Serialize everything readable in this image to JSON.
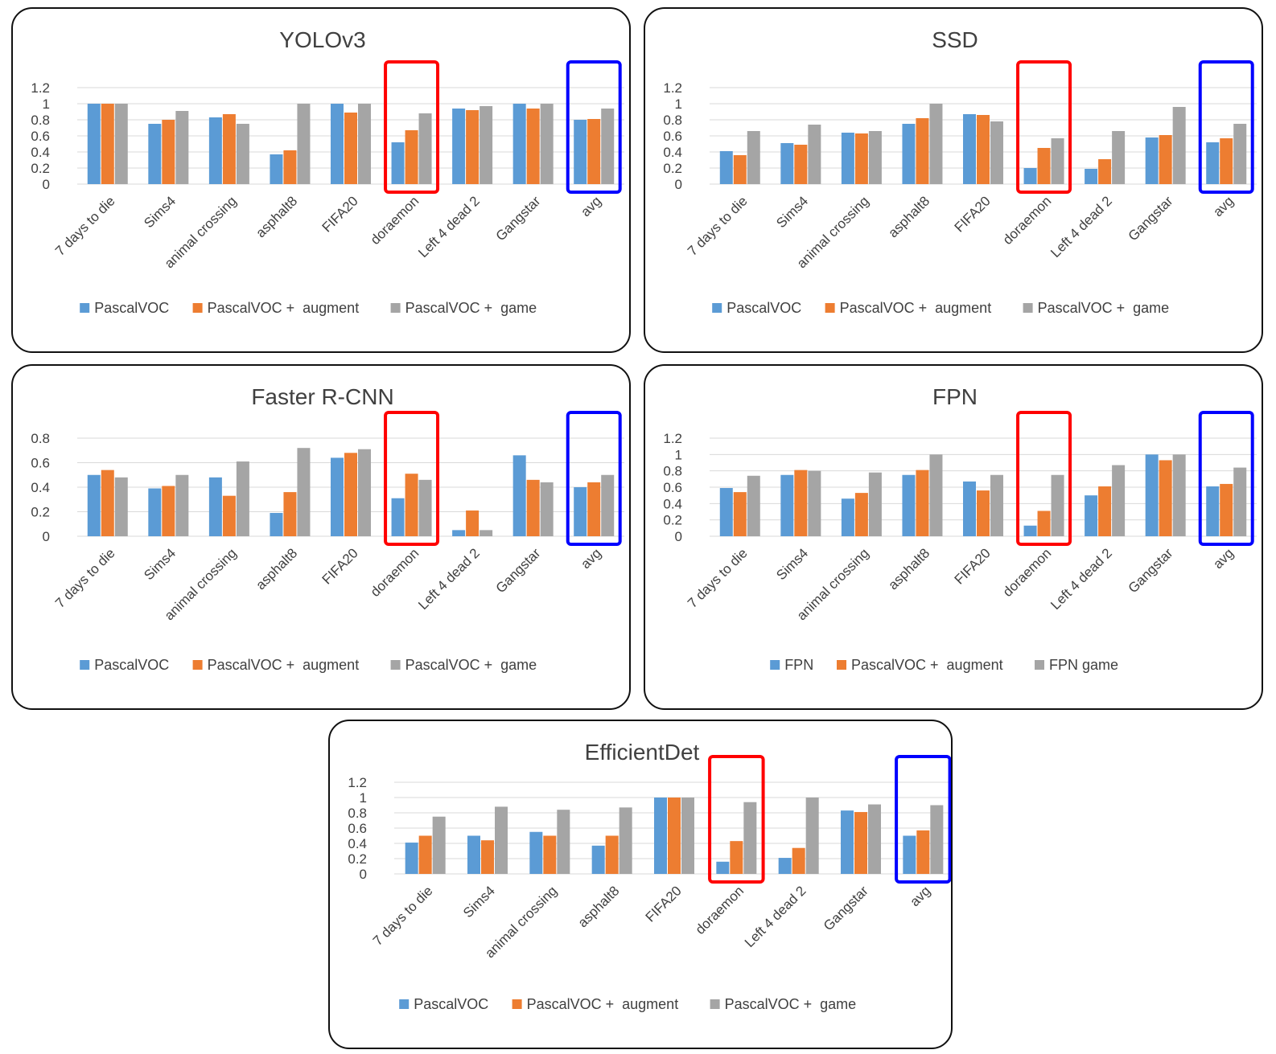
{
  "chart_data": [
    {
      "type": "bar",
      "title": "YOLOv3",
      "categories": [
        "7 days to die",
        "Sims4",
        "animal crossing",
        "asphalt8",
        "FIFA20",
        "doraemon",
        "Left 4 dead 2",
        "Gangstar",
        "avg"
      ],
      "series": [
        {
          "name": "PascalVOC",
          "color": "#5b9bd5",
          "values": [
            1.0,
            0.75,
            0.83,
            0.37,
            1.0,
            0.52,
            0.94,
            1.0,
            0.8
          ]
        },
        {
          "name": "PascalVOC +  augment",
          "color": "#ed7d31",
          "values": [
            1.0,
            0.8,
            0.87,
            0.42,
            0.89,
            0.67,
            0.92,
            0.94,
            0.81
          ]
        },
        {
          "name": "PascalVOC +  game",
          "color": "#a5a5a5",
          "values": [
            1.0,
            0.91,
            0.75,
            1.0,
            1.0,
            0.88,
            0.97,
            1.0,
            0.94
          ]
        }
      ],
      "yticks": [
        "0",
        "0.2",
        "0.4",
        "0.6",
        "0.8",
        "1",
        "1.2"
      ],
      "ylim": [
        0,
        1.2
      ],
      "grid": true,
      "legend_position": "bottom",
      "highlight_red": "doraemon",
      "highlight_blue": "avg"
    },
    {
      "type": "bar",
      "title": "SSD",
      "categories": [
        "7 days to die",
        "Sims4",
        "animal crossing",
        "asphalt8",
        "FIFA20",
        "doraemon",
        "Left 4 dead 2",
        "Gangstar",
        "avg"
      ],
      "series": [
        {
          "name": "PascalVOC",
          "color": "#5b9bd5",
          "values": [
            0.41,
            0.51,
            0.64,
            0.75,
            0.87,
            0.2,
            0.19,
            0.58,
            0.52
          ]
        },
        {
          "name": "PascalVOC +  augment",
          "color": "#ed7d31",
          "values": [
            0.36,
            0.49,
            0.63,
            0.82,
            0.86,
            0.45,
            0.31,
            0.61,
            0.57
          ]
        },
        {
          "name": "PascalVOC +  game",
          "color": "#a5a5a5",
          "values": [
            0.66,
            0.74,
            0.66,
            1.0,
            0.78,
            0.57,
            0.66,
            0.96,
            0.75
          ]
        }
      ],
      "yticks": [
        "0",
        "0.2",
        "0.4",
        "0.6",
        "0.8",
        "1",
        "1.2"
      ],
      "ylim": [
        0,
        1.2
      ],
      "grid": true,
      "legend_position": "bottom",
      "highlight_red": "doraemon",
      "highlight_blue": "avg"
    },
    {
      "type": "bar",
      "title": "Faster R-CNN",
      "categories": [
        "7 days to die",
        "Sims4",
        "animal crossing",
        "asphalt8",
        "FIFA20",
        "doraemon",
        "Left 4 dead 2",
        "Gangstar",
        "avg"
      ],
      "series": [
        {
          "name": "PascalVOC",
          "color": "#5b9bd5",
          "values": [
            0.5,
            0.39,
            0.48,
            0.19,
            0.64,
            0.31,
            0.05,
            0.66,
            0.4
          ]
        },
        {
          "name": "PascalVOC +  augment",
          "color": "#ed7d31",
          "values": [
            0.54,
            0.41,
            0.33,
            0.36,
            0.68,
            0.51,
            0.21,
            0.46,
            0.44
          ]
        },
        {
          "name": "PascalVOC +  game",
          "color": "#a5a5a5",
          "values": [
            0.48,
            0.5,
            0.61,
            0.72,
            0.71,
            0.46,
            0.05,
            0.44,
            0.5
          ]
        }
      ],
      "yticks": [
        "0",
        "0.2",
        "0.4",
        "0.6",
        "0.8"
      ],
      "ylim": [
        0,
        0.8
      ],
      "grid": true,
      "legend_position": "bottom",
      "highlight_red": "doraemon",
      "highlight_blue": "avg"
    },
    {
      "type": "bar",
      "title": "FPN",
      "categories": [
        "7 days to die",
        "Sims4",
        "animal crossing",
        "asphalt8",
        "FIFA20",
        "doraemon",
        "Left 4 dead 2",
        "Gangstar",
        "avg"
      ],
      "series": [
        {
          "name": "FPN",
          "color": "#5b9bd5",
          "values": [
            0.59,
            0.75,
            0.46,
            0.75,
            0.67,
            0.13,
            0.5,
            1.0,
            0.61
          ]
        },
        {
          "name": "PascalVOC +  augment",
          "color": "#ed7d31",
          "values": [
            0.54,
            0.81,
            0.53,
            0.81,
            0.56,
            0.31,
            0.61,
            0.93,
            0.64
          ]
        },
        {
          "name": "FPN game",
          "color": "#a5a5a5",
          "values": [
            0.74,
            0.8,
            0.78,
            1.0,
            0.75,
            0.75,
            0.87,
            1.0,
            0.84
          ]
        }
      ],
      "yticks": [
        "0",
        "0.2",
        "0.4",
        "0.6",
        "0.8",
        "1",
        "1.2"
      ],
      "ylim": [
        0,
        1.2
      ],
      "grid": true,
      "legend_position": "bottom",
      "highlight_red": "doraemon",
      "highlight_blue": "avg"
    },
    {
      "type": "bar",
      "title": "EfficientDet",
      "categories": [
        "7 days to die",
        "Sims4",
        "animal crossing",
        "asphalt8",
        "FIFA20",
        "doraemon",
        "Left 4 dead 2",
        "Gangstar",
        "avg"
      ],
      "series": [
        {
          "name": "PascalVOC",
          "color": "#5b9bd5",
          "values": [
            0.41,
            0.5,
            0.55,
            0.37,
            1.0,
            0.16,
            0.21,
            0.83,
            0.5
          ]
        },
        {
          "name": "PascalVOC +  augment",
          "color": "#ed7d31",
          "values": [
            0.5,
            0.44,
            0.5,
            0.5,
            1.0,
            0.43,
            0.34,
            0.81,
            0.57
          ]
        },
        {
          "name": "PascalVOC +  game",
          "color": "#a5a5a5",
          "values": [
            0.75,
            0.88,
            0.84,
            0.87,
            1.0,
            0.94,
            1.0,
            0.91,
            0.9
          ]
        }
      ],
      "yticks": [
        "0",
        "0.2",
        "0.4",
        "0.6",
        "0.8",
        "1",
        "1.2"
      ],
      "ylim": [
        0,
        1.2
      ],
      "grid": true,
      "legend_position": "bottom",
      "highlight_red": "doraemon",
      "highlight_blue": "avg"
    }
  ]
}
